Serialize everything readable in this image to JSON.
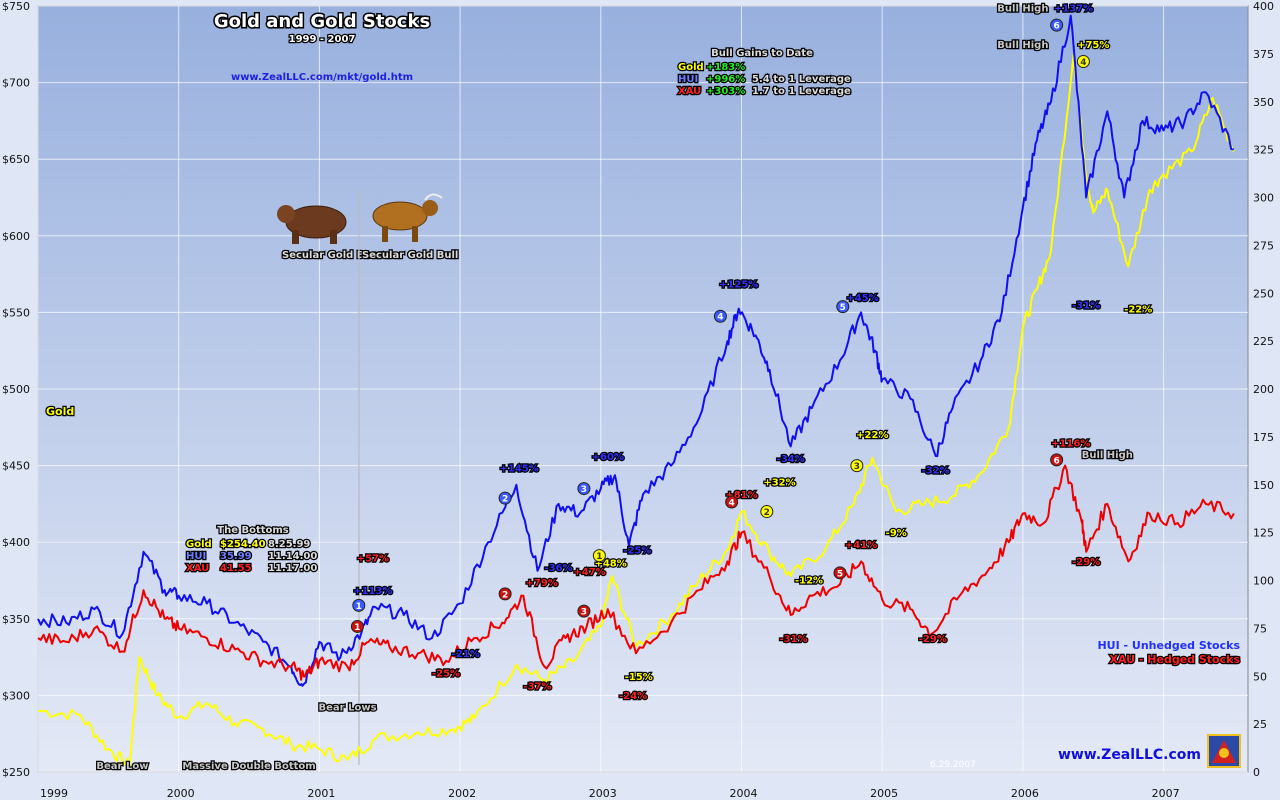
{
  "chart_data": {
    "type": "line",
    "title": "Gold and Gold Stocks",
    "subtitle": "1999 - 2007",
    "url_top": "www.ZealLLC.com/mkt/gold.htm",
    "watermark": "www.ZealLLC.com",
    "date_stamp": "6.29.2007",
    "gold_label": "Gold",
    "x_ticks": [
      "1999",
      "2000",
      "2001",
      "2002",
      "2003",
      "2004",
      "2005",
      "2006",
      "2007"
    ],
    "x_range": [
      1999.0,
      2007.6
    ],
    "y_left": {
      "range": [
        250,
        750
      ],
      "ticks": [
        "$250",
        "$300",
        "$350",
        "$400",
        "$450",
        "$500",
        "$550",
        "$600",
        "$650",
        "$700",
        "$750"
      ]
    },
    "y_right": {
      "range": [
        0,
        400
      ],
      "ticks": [
        "0",
        "25",
        "50",
        "75",
        "100",
        "125",
        "150",
        "175",
        "200",
        "225",
        "250",
        "275",
        "300",
        "325",
        "350",
        "375",
        "400"
      ]
    },
    "series": [
      {
        "name": "Gold",
        "color": "#ffff00",
        "axis": "left",
        "points": [
          [
            1999.0,
            290
          ],
          [
            1999.3,
            287
          ],
          [
            1999.5,
            265
          ],
          [
            1999.65,
            254
          ],
          [
            1999.72,
            325
          ],
          [
            1999.85,
            300
          ],
          [
            2000.0,
            286
          ],
          [
            2000.2,
            295
          ],
          [
            2000.4,
            282
          ],
          [
            2000.6,
            278
          ],
          [
            2000.8,
            268
          ],
          [
            2001.0,
            265
          ],
          [
            2001.2,
            258
          ],
          [
            2001.4,
            272
          ],
          [
            2001.7,
            276
          ],
          [
            2001.95,
            278
          ],
          [
            2002.1,
            285
          ],
          [
            2002.4,
            320
          ],
          [
            2002.6,
            310
          ],
          [
            2002.8,
            322
          ],
          [
            2003.0,
            345
          ],
          [
            2003.08,
            378
          ],
          [
            2003.25,
            332
          ],
          [
            2003.5,
            352
          ],
          [
            2003.7,
            375
          ],
          [
            2003.9,
            395
          ],
          [
            2004.0,
            420
          ],
          [
            2004.2,
            393
          ],
          [
            2004.35,
            378
          ],
          [
            2004.6,
            396
          ],
          [
            2004.8,
            425
          ],
          [
            2004.93,
            455
          ],
          [
            2005.1,
            420
          ],
          [
            2005.3,
            425
          ],
          [
            2005.5,
            430
          ],
          [
            2005.7,
            445
          ],
          [
            2005.9,
            475
          ],
          [
            2006.0,
            540
          ],
          [
            2006.1,
            565
          ],
          [
            2006.2,
            590
          ],
          [
            2006.36,
            718
          ],
          [
            2006.45,
            640
          ],
          [
            2006.5,
            615
          ],
          [
            2006.6,
            630
          ],
          [
            2006.75,
            580
          ],
          [
            2006.9,
            630
          ],
          [
            2007.0,
            640
          ],
          [
            2007.2,
            655
          ],
          [
            2007.35,
            690
          ],
          [
            2007.5,
            655
          ]
        ]
      },
      {
        "name": "HUI - Unhedged Stocks",
        "color": "#1010ee",
        "axis": "right",
        "points": [
          [
            1999.0,
            80
          ],
          [
            1999.2,
            78
          ],
          [
            1999.4,
            85
          ],
          [
            1999.6,
            72
          ],
          [
            1999.75,
            115
          ],
          [
            1999.9,
            95
          ],
          [
            2000.0,
            92
          ],
          [
            2000.2,
            88
          ],
          [
            2000.4,
            78
          ],
          [
            2000.6,
            68
          ],
          [
            2000.8,
            55
          ],
          [
            2000.88,
            45
          ],
          [
            2001.0,
            68
          ],
          [
            2001.15,
            60
          ],
          [
            2001.3,
            73
          ],
          [
            2001.4,
            86
          ],
          [
            2001.6,
            82
          ],
          [
            2001.8,
            70
          ],
          [
            2002.0,
            88
          ],
          [
            2002.2,
            120
          ],
          [
            2002.4,
            150
          ],
          [
            2002.55,
            105
          ],
          [
            2002.7,
            140
          ],
          [
            2002.85,
            135
          ],
          [
            2003.0,
            148
          ],
          [
            2003.1,
            155
          ],
          [
            2003.2,
            118
          ],
          [
            2003.3,
            145
          ],
          [
            2003.5,
            160
          ],
          [
            2003.7,
            185
          ],
          [
            2003.9,
            225
          ],
          [
            2003.98,
            242
          ],
          [
            2004.1,
            228
          ],
          [
            2004.2,
            210
          ],
          [
            2004.35,
            170
          ],
          [
            2004.5,
            190
          ],
          [
            2004.7,
            215
          ],
          [
            2004.85,
            240
          ],
          [
            2004.95,
            220
          ],
          [
            2005.0,
            205
          ],
          [
            2005.2,
            195
          ],
          [
            2005.38,
            165
          ],
          [
            2005.5,
            190
          ],
          [
            2005.7,
            215
          ],
          [
            2005.85,
            240
          ],
          [
            2006.0,
            295
          ],
          [
            2006.1,
            330
          ],
          [
            2006.2,
            350
          ],
          [
            2006.34,
            395
          ],
          [
            2006.45,
            300
          ],
          [
            2006.6,
            345
          ],
          [
            2006.72,
            300
          ],
          [
            2006.85,
            340
          ],
          [
            2007.0,
            335
          ],
          [
            2007.15,
            340
          ],
          [
            2007.3,
            355
          ],
          [
            2007.5,
            325
          ]
        ]
      },
      {
        "name": "XAU - Hedged Stocks",
        "color": "#ee0000",
        "axis": "right",
        "points": [
          [
            1999.0,
            70
          ],
          [
            1999.2,
            68
          ],
          [
            1999.4,
            75
          ],
          [
            1999.6,
            63
          ],
          [
            1999.75,
            95
          ],
          [
            1999.9,
            80
          ],
          [
            2000.0,
            75
          ],
          [
            2000.2,
            70
          ],
          [
            2000.4,
            64
          ],
          [
            2000.6,
            58
          ],
          [
            2000.8,
            55
          ],
          [
            2000.9,
            50
          ],
          [
            2001.0,
            58
          ],
          [
            2001.2,
            55
          ],
          [
            2001.35,
            68
          ],
          [
            2001.5,
            65
          ],
          [
            2001.7,
            62
          ],
          [
            2001.9,
            58
          ],
          [
            2002.1,
            70
          ],
          [
            2002.3,
            78
          ],
          [
            2002.45,
            92
          ],
          [
            2002.6,
            55
          ],
          [
            2002.75,
            70
          ],
          [
            2002.9,
            76
          ],
          [
            2003.05,
            85
          ],
          [
            2003.25,
            62
          ],
          [
            2003.5,
            78
          ],
          [
            2003.7,
            95
          ],
          [
            2003.9,
            110
          ],
          [
            2004.0,
            125
          ],
          [
            2004.2,
            102
          ],
          [
            2004.35,
            82
          ],
          [
            2004.5,
            92
          ],
          [
            2004.7,
            98
          ],
          [
            2004.85,
            110
          ],
          [
            2005.0,
            90
          ],
          [
            2005.2,
            85
          ],
          [
            2005.35,
            72
          ],
          [
            2005.55,
            92
          ],
          [
            2005.75,
            105
          ],
          [
            2005.9,
            120
          ],
          [
            2006.0,
            135
          ],
          [
            2006.15,
            130
          ],
          [
            2006.3,
            160
          ],
          [
            2006.42,
            130
          ],
          [
            2006.45,
            115
          ],
          [
            2006.6,
            140
          ],
          [
            2006.75,
            110
          ],
          [
            2006.9,
            135
          ],
          [
            2007.1,
            130
          ],
          [
            2007.3,
            140
          ],
          [
            2007.5,
            135
          ]
        ]
      }
    ],
    "legend": {
      "placement": "right",
      "entries": [
        "HUI - Unhedged Stocks",
        "XAU - Hedged Stocks"
      ]
    },
    "bull_gains": {
      "title": "Bull Gains to Date",
      "rows": [
        {
          "label": "Gold",
          "gain": "+183%",
          "note": ""
        },
        {
          "label": "HUI",
          "gain": "+996%",
          "note": "5.4 to 1 Leverage"
        },
        {
          "label": "XAU",
          "gain": "+303%",
          "note": "1.7 to 1 Leverage"
        }
      ]
    },
    "bottoms": {
      "title": "The Bottoms",
      "rows": [
        {
          "label": "Gold",
          "value": "$254.40",
          "date": "8.25.99"
        },
        {
          "label": "HUI",
          "value": "35.99",
          "date": "11.14.00"
        },
        {
          "label": "XAU",
          "value": "41.55",
          "date": "11.17.00"
        }
      ]
    },
    "images": {
      "bear_caption": "Secular Gold Bear",
      "bull_caption": "Secular Gold Bull"
    },
    "annotations": [
      {
        "text": "Bear Low",
        "x": 1999.6,
        "y": 252,
        "axis": "left",
        "color": "#c8c8c8"
      },
      {
        "text": "Massive Double Bottom",
        "x": 2000.5,
        "y": 252,
        "axis": "left",
        "color": "#c8c8c8"
      },
      {
        "text": "Bear Lows",
        "x": 2001.2,
        "y": 290,
        "axis": "left",
        "color": "#c8c8c8"
      },
      {
        "text": "+113%",
        "x": 2001.38,
        "y": 93,
        "axis": "right",
        "color": "#3030ff"
      },
      {
        "text": "+57%",
        "x": 2001.38,
        "y": 110,
        "axis": "right",
        "color": "#ff2020"
      },
      {
        "text": "-21%",
        "x": 2002.04,
        "y": 60,
        "axis": "right",
        "color": "#3030ff"
      },
      {
        "text": "-25%",
        "x": 2001.9,
        "y": 50,
        "axis": "right",
        "color": "#ff2020"
      },
      {
        "text": "+145%",
        "x": 2002.42,
        "y": 157,
        "axis": "right",
        "color": "#3030ff"
      },
      {
        "text": "+79%",
        "x": 2002.58,
        "y": 97,
        "axis": "right",
        "color": "#ff2020"
      },
      {
        "text": "-36%",
        "x": 2002.7,
        "y": 105,
        "axis": "right",
        "color": "#3030ff"
      },
      {
        "text": "-37%",
        "x": 2002.55,
        "y": 43,
        "axis": "right",
        "color": "#ff2020"
      },
      {
        "text": "+60%",
        "x": 2003.05,
        "y": 163,
        "axis": "right",
        "color": "#3030ff"
      },
      {
        "text": "+47%",
        "x": 2002.92,
        "y": 103,
        "axis": "right",
        "color": "#ff2020"
      },
      {
        "text": "+48%",
        "x": 2003.07,
        "y": 384,
        "axis": "left",
        "color": "#ffff00"
      },
      {
        "text": "-25%",
        "x": 2003.26,
        "y": 114,
        "axis": "right",
        "color": "#3030ff"
      },
      {
        "text": "-15%",
        "x": 2003.27,
        "y": 310,
        "axis": "left",
        "color": "#ffff00"
      },
      {
        "text": "-24%",
        "x": 2003.23,
        "y": 38,
        "axis": "right",
        "color": "#ff2020"
      },
      {
        "text": "+125%",
        "x": 2003.98,
        "y": 253,
        "axis": "right",
        "color": "#3030ff"
      },
      {
        "text": "+81%",
        "x": 2004.0,
        "y": 143,
        "axis": "right",
        "color": "#ff2020"
      },
      {
        "text": "+32%",
        "x": 2004.27,
        "y": 437,
        "axis": "left",
        "color": "#ffff00"
      },
      {
        "text": "-34%",
        "x": 2004.35,
        "y": 162,
        "axis": "right",
        "color": "#3030ff"
      },
      {
        "text": "-12%",
        "x": 2004.48,
        "y": 373,
        "axis": "left",
        "color": "#ffff00"
      },
      {
        "text": "-31%",
        "x": 2004.37,
        "y": 68,
        "axis": "right",
        "color": "#ff2020"
      },
      {
        "text": "+45%",
        "x": 2004.86,
        "y": 246,
        "axis": "right",
        "color": "#3030ff"
      },
      {
        "text": "+22%",
        "x": 2004.93,
        "y": 468,
        "axis": "left",
        "color": "#ffff00"
      },
      {
        "text": "+41%",
        "x": 2004.85,
        "y": 117,
        "axis": "right",
        "color": "#ff2020"
      },
      {
        "text": "-9%",
        "x": 2005.1,
        "y": 404,
        "axis": "left",
        "color": "#ffff00"
      },
      {
        "text": "-32%",
        "x": 2005.38,
        "y": 156,
        "axis": "right",
        "color": "#3030ff"
      },
      {
        "text": "-29%",
        "x": 2005.36,
        "y": 68,
        "axis": "right",
        "color": "#ff2020"
      },
      {
        "text": "Bull High",
        "x": 2006.0,
        "y": 397,
        "axis": "right",
        "color": "#c8c8c8"
      },
      {
        "text": "+137%",
        "x": 2006.36,
        "y": 397,
        "axis": "right",
        "color": "#3030ff"
      },
      {
        "text": "Bull High",
        "x": 2006.0,
        "y": 378,
        "axis": "right",
        "color": "#c8c8c8"
      },
      {
        "text": "+75%",
        "x": 2006.5,
        "y": 378,
        "axis": "right",
        "color": "#ffff00"
      },
      {
        "text": "-31%",
        "x": 2006.45,
        "y": 242,
        "axis": "right",
        "color": "#3030ff"
      },
      {
        "text": "-22%",
        "x": 2006.82,
        "y": 240,
        "axis": "right",
        "color": "#ffff00"
      },
      {
        "text": "+116%",
        "x": 2006.34,
        "y": 170,
        "axis": "right",
        "color": "#ff2020"
      },
      {
        "text": "Bull High",
        "x": 2006.6,
        "y": 164,
        "axis": "right",
        "color": "#c8c8c8"
      },
      {
        "text": "-29%",
        "x": 2006.45,
        "y": 108,
        "axis": "right",
        "color": "#ff2020"
      }
    ],
    "markers": [
      {
        "n": "1",
        "x": 2001.28,
        "y": 87,
        "color": "#3a5cff"
      },
      {
        "n": "1",
        "x": 2001.27,
        "y": 76,
        "color": "#cc1010"
      },
      {
        "n": "2",
        "x": 2002.32,
        "y": 143,
        "color": "#3a5cff"
      },
      {
        "n": "2",
        "x": 2002.32,
        "y": 93,
        "color": "#cc1010"
      },
      {
        "n": "3",
        "x": 2002.88,
        "y": 148,
        "color": "#3a5cff"
      },
      {
        "n": "3",
        "x": 2002.88,
        "y": 84,
        "color": "#cc1010"
      },
      {
        "n": "1",
        "x": 2002.99,
        "y": 113,
        "color": "#ffff00"
      },
      {
        "n": "4",
        "x": 2003.85,
        "y": 238,
        "color": "#3a5cff"
      },
      {
        "n": "4",
        "x": 2003.93,
        "y": 141,
        "color": "#cc1010"
      },
      {
        "n": "2",
        "x": 2004.18,
        "y": 136,
        "color": "#ffff00"
      },
      {
        "n": "5",
        "x": 2004.72,
        "y": 243,
        "color": "#3a5cff"
      },
      {
        "n": "5",
        "x": 2004.7,
        "y": 104,
        "color": "#cc1010"
      },
      {
        "n": "3",
        "x": 2004.82,
        "y": 160,
        "color": "#ffff00"
      },
      {
        "n": "6",
        "x": 2006.24,
        "y": 390,
        "color": "#3a5cff"
      },
      {
        "n": "6",
        "x": 2006.24,
        "y": 163,
        "color": "#cc1010"
      },
      {
        "n": "4",
        "x": 2006.43,
        "y": 371,
        "color": "#ffff00"
      }
    ]
  }
}
